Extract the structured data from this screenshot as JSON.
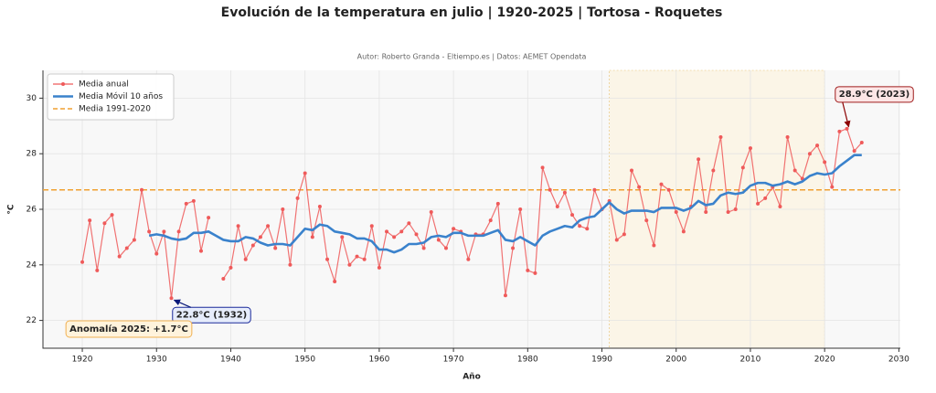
{
  "chart_data": {
    "type": "line",
    "title": "Evolución de la temperatura en julio | 1920-2025 | Tortosa - Roquetes",
    "subtitle": "Autor: Roberto Granda - Eltiempo.es | Datos: AEMET Opendata",
    "xlabel": "Año",
    "ylabel": "°C",
    "x": [
      1920,
      1921,
      1922,
      1923,
      1924,
      1925,
      1926,
      1927,
      1928,
      1929,
      1930,
      1931,
      1932,
      1933,
      1934,
      1935,
      1936,
      1937,
      1938,
      1939,
      1940,
      1941,
      1942,
      1943,
      1944,
      1945,
      1946,
      1947,
      1948,
      1949,
      1950,
      1951,
      1952,
      1953,
      1954,
      1955,
      1956,
      1957,
      1958,
      1959,
      1960,
      1961,
      1962,
      1963,
      1964,
      1965,
      1966,
      1967,
      1968,
      1969,
      1970,
      1971,
      1972,
      1973,
      1974,
      1975,
      1976,
      1977,
      1978,
      1979,
      1980,
      1981,
      1982,
      1983,
      1984,
      1985,
      1986,
      1987,
      1988,
      1989,
      1990,
      1991,
      1992,
      1993,
      1994,
      1995,
      1996,
      1997,
      1998,
      1999,
      2000,
      2001,
      2002,
      2003,
      2004,
      2005,
      2006,
      2007,
      2008,
      2009,
      2010,
      2011,
      2012,
      2013,
      2014,
      2015,
      2016,
      2017,
      2018,
      2019,
      2020,
      2021,
      2022,
      2023,
      2024,
      2025
    ],
    "series": [
      {
        "name": "Media anual",
        "color": "#ef5a5a",
        "markers": true,
        "values": [
          24.1,
          25.6,
          23.8,
          25.5,
          25.8,
          24.3,
          24.6,
          24.9,
          26.7,
          25.2,
          24.4,
          25.2,
          22.8,
          25.2,
          26.2,
          26.3,
          24.5,
          25.7,
          null,
          23.5,
          23.9,
          25.4,
          24.2,
          24.7,
          25.0,
          25.4,
          24.6,
          26.0,
          24.0,
          26.4,
          27.3,
          25.0,
          26.1,
          24.2,
          23.4,
          25.0,
          24.0,
          24.3,
          24.2,
          25.4,
          23.9,
          25.2,
          25.0,
          25.2,
          25.5,
          25.1,
          24.6,
          25.9,
          24.9,
          24.6,
          25.3,
          25.2,
          24.2,
          25.1,
          25.1,
          25.6,
          26.2,
          22.9,
          24.6,
          26.0,
          23.8,
          23.7,
          27.5,
          26.7,
          26.1,
          26.6,
          25.8,
          25.4,
          25.3,
          26.7,
          26.0,
          26.3,
          24.9,
          25.1,
          27.4,
          26.8,
          25.6,
          24.7,
          26.9,
          26.7,
          25.9,
          25.2,
          26.1,
          27.8,
          25.9,
          27.4,
          28.6,
          25.9,
          26.0,
          27.5,
          28.2,
          26.2,
          26.4,
          26.8,
          26.1,
          28.6,
          27.4,
          27.1,
          28.0,
          28.3,
          27.7,
          26.8,
          28.8,
          28.9,
          28.1,
          28.4
        ]
      },
      {
        "name": "Media Móvil 10 años",
        "color": "#3a82cc",
        "markers": false,
        "values": [
          null,
          null,
          null,
          null,
          null,
          null,
          null,
          null,
          null,
          25.05,
          25.1,
          25.05,
          24.95,
          24.9,
          24.95,
          25.15,
          25.15,
          25.2,
          25.05,
          24.9,
          24.85,
          24.85,
          25.0,
          24.95,
          24.8,
          24.7,
          24.75,
          24.75,
          24.7,
          25.0,
          25.3,
          25.25,
          25.45,
          25.4,
          25.2,
          25.15,
          25.1,
          24.95,
          24.95,
          24.85,
          24.55,
          24.55,
          24.45,
          24.55,
          24.75,
          24.75,
          24.8,
          25.0,
          25.05,
          25.0,
          25.15,
          25.15,
          25.05,
          25.05,
          25.05,
          25.15,
          25.25,
          24.9,
          24.85,
          25.0,
          24.85,
          24.7,
          25.05,
          25.2,
          25.3,
          25.4,
          25.35,
          25.6,
          25.7,
          25.75,
          26.0,
          26.25,
          26.0,
          25.85,
          25.95,
          25.95,
          25.95,
          25.9,
          26.05,
          26.05,
          26.05,
          25.95,
          26.05,
          26.3,
          26.15,
          26.2,
          26.5,
          26.6,
          26.55,
          26.6,
          26.85,
          26.95,
          26.95,
          26.85,
          26.9,
          27.0,
          26.9,
          27.0,
          27.2,
          27.3,
          27.25,
          27.3,
          27.55,
          27.75,
          27.95,
          27.95
        ]
      }
    ],
    "reference_line": {
      "name": "Media 1991-2020",
      "value": 26.7,
      "color": "#f0a030",
      "span": [
        1991,
        2020
      ]
    },
    "annotations": [
      {
        "text": "28.9°C (2023)",
        "x": 2023,
        "y": 28.9
      },
      {
        "text": "22.8°C (1932)",
        "x": 1932,
        "y": 22.8
      }
    ],
    "anomaly_label": "Anomalía 2025: +1.7°C",
    "xlim": [
      1914.7,
      2030.2
    ],
    "ylim": [
      21,
      31
    ],
    "xticks": [
      1920,
      1930,
      1940,
      1950,
      1960,
      1970,
      1980,
      1990,
      2000,
      2010,
      2020,
      2030
    ],
    "yticks": [
      22,
      24,
      26,
      28,
      30
    ],
    "grid": true,
    "legend": "upper left"
  }
}
